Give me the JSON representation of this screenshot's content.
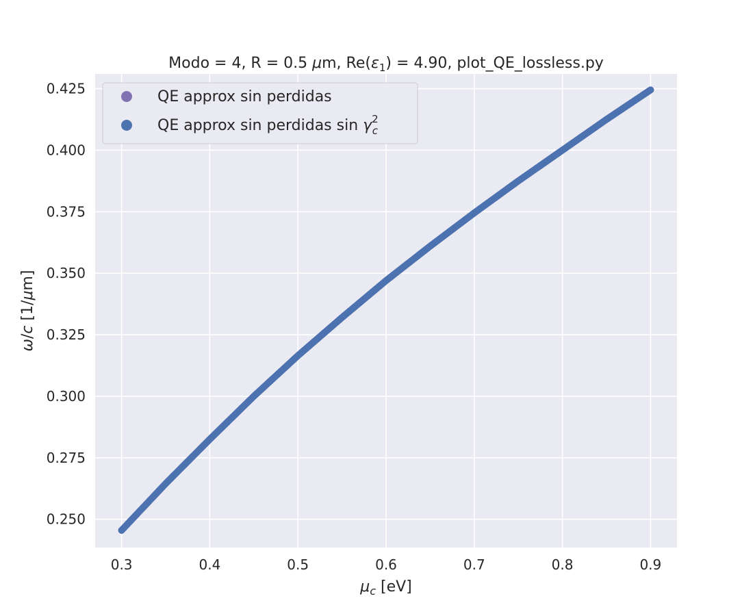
{
  "chart_data": {
    "type": "scatter",
    "title": {
      "part1": "Modo = 4, R = 0.5 ",
      "mu": "μ",
      "part2": "m, Re(",
      "eps": "ε",
      "sub": "1",
      "part3": ") = 4.90, plot_QE_lossless.py"
    },
    "xlabel": {
      "sym": "μ",
      "sub": "c",
      "rest": " [eV]"
    },
    "ylabel": {
      "sym": "ω",
      "slash": "/",
      "c": "c",
      "rest": " [1/",
      "mu": "μ",
      "end": "m]"
    },
    "xlim": [
      0.27,
      0.93
    ],
    "ylim": [
      0.2385,
      0.431
    ],
    "xticks": [
      0.3,
      0.4,
      0.5,
      0.6,
      0.7,
      0.8,
      0.9
    ],
    "xtick_labels": [
      "0.3",
      "0.4",
      "0.5",
      "0.6",
      "0.7",
      "0.8",
      "0.9"
    ],
    "yticks": [
      0.25,
      0.275,
      0.3,
      0.325,
      0.35,
      0.375,
      0.4,
      0.425
    ],
    "ytick_labels": [
      "0.250",
      "0.275",
      "0.300",
      "0.325",
      "0.350",
      "0.375",
      "0.400",
      "0.425"
    ],
    "grid": true,
    "legend_position": "top-left",
    "background_color": "#eaeaf2",
    "grid_color": "#ffffff",
    "series": [
      {
        "name": "QE approx sin perdidas",
        "color": "#8172b2",
        "x": [
          0.3,
          0.35,
          0.4,
          0.45,
          0.5,
          0.55,
          0.6,
          0.65,
          0.7,
          0.75,
          0.8,
          0.85,
          0.9
        ],
        "y": [
          0.2455,
          0.2645,
          0.2825,
          0.3,
          0.3165,
          0.332,
          0.347,
          0.361,
          0.3745,
          0.3875,
          0.4,
          0.4125,
          0.4245
        ]
      },
      {
        "name": {
          "text": "QE approx sin perdidas sin ",
          "sym": "γ",
          "sup": "2",
          "sub": "c"
        },
        "color": "#4c72b0",
        "x": [
          0.3,
          0.35,
          0.4,
          0.45,
          0.5,
          0.55,
          0.6,
          0.65,
          0.7,
          0.75,
          0.8,
          0.85,
          0.9
        ],
        "y": [
          0.2455,
          0.2645,
          0.2825,
          0.3,
          0.3165,
          0.332,
          0.347,
          0.361,
          0.3745,
          0.3875,
          0.4,
          0.4125,
          0.4245
        ]
      }
    ]
  }
}
